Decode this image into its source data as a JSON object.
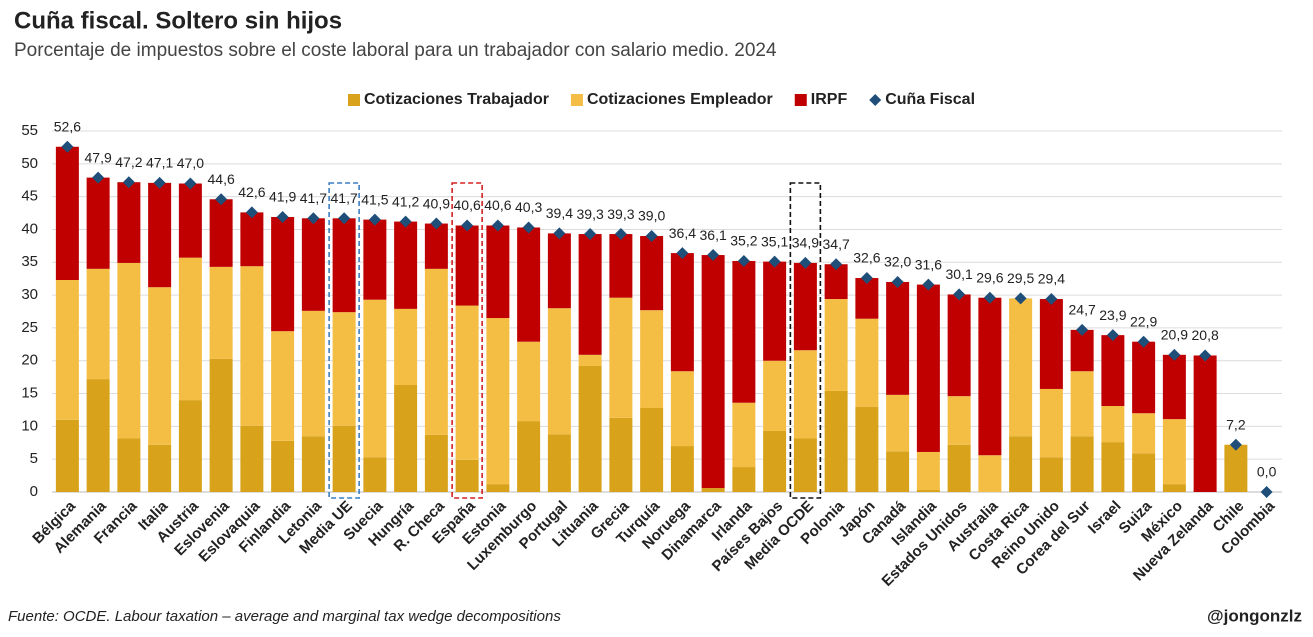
{
  "chart_data": {
    "type": "bar",
    "stacked": true,
    "title": "Cuña fiscal. Soltero sin hijos",
    "subtitle": "Porcentaje de impuestos sobre el coste laboral para un trabajador con salario medio. 2024",
    "source": "Fuente: OCDE. Labour taxation – average and marginal tax wedge decompositions",
    "credit": "@jongonzlz",
    "categories": [
      "Bélgica",
      "Alemania",
      "Francia",
      "Italia",
      "Austria",
      "Eslovenia",
      "Eslovaquia",
      "Finlandia",
      "Letonia",
      "Media UE",
      "Suecia",
      "Hungría",
      "R. Checa",
      "España",
      "Estonia",
      "Luxemburgo",
      "Portugal",
      "Lituania",
      "Grecia",
      "Turquía",
      "Noruega",
      "Dinamarca",
      "Irlanda",
      "Países Bajos",
      "Media OCDE",
      "Polonia",
      "Japón",
      "Canadá",
      "Islandia",
      "Estados Unidos",
      "Australia",
      "Costa Rica",
      "Reino Unido",
      "Corea del Sur",
      "Israel",
      "Suiza",
      "México",
      "Nueva Zelanda",
      "Chile",
      "Colombia"
    ],
    "series": [
      {
        "name": "Cotizaciones Trabajador",
        "type": "bar",
        "color": "#D9A21B",
        "values": [
          11.0,
          17.2,
          8.2,
          7.2,
          14.0,
          20.3,
          10.1,
          7.8,
          8.5,
          10.1,
          5.3,
          16.3,
          8.7,
          4.9,
          1.2,
          10.8,
          8.8,
          19.2,
          11.3,
          12.8,
          7.0,
          0.6,
          3.8,
          9.3,
          8.2,
          15.4,
          13.0,
          6.2,
          0.3,
          7.2,
          0,
          8.5,
          5.3,
          8.5,
          7.6,
          5.9,
          1.2,
          0,
          7.2,
          0
        ]
      },
      {
        "name": "Cotizaciones Empleador",
        "type": "bar",
        "color": "#F4BE45",
        "values": [
          21.3,
          16.8,
          26.7,
          24.0,
          21.7,
          14.0,
          24.3,
          16.7,
          19.1,
          17.3,
          24.0,
          11.6,
          25.3,
          23.5,
          25.3,
          12.1,
          19.2,
          1.7,
          18.3,
          14.9,
          11.4,
          0,
          9.8,
          10.7,
          13.4,
          14.0,
          13.4,
          8.6,
          5.8,
          7.4,
          5.6,
          21.0,
          10.4,
          9.9,
          5.5,
          6.1,
          9.9,
          0,
          0,
          0
        ]
      },
      {
        "name": "IRPF",
        "type": "bar",
        "color": "#C00000",
        "values": [
          20.3,
          13.9,
          12.3,
          15.9,
          11.3,
          10.3,
          8.2,
          17.4,
          14.1,
          14.3,
          12.2,
          13.3,
          6.9,
          12.2,
          14.1,
          17.4,
          11.4,
          18.4,
          9.7,
          11.3,
          18.0,
          35.5,
          21.6,
          15.1,
          13.3,
          5.3,
          6.2,
          17.2,
          25.5,
          15.5,
          24.0,
          0,
          13.7,
          6.3,
          10.8,
          10.9,
          9.8,
          20.8,
          0,
          0
        ]
      },
      {
        "name": "Cuña Fiscal",
        "type": "scatter",
        "marker": "diamond",
        "color": "#1F4E79",
        "values": [
          52.6,
          47.9,
          47.2,
          47.1,
          47.0,
          44.6,
          42.6,
          41.9,
          41.7,
          41.7,
          41.5,
          41.2,
          40.9,
          40.6,
          40.6,
          40.3,
          39.4,
          39.3,
          39.3,
          39.0,
          36.4,
          36.1,
          35.2,
          35.1,
          34.9,
          34.7,
          32.6,
          32.0,
          31.6,
          30.1,
          29.6,
          29.5,
          29.4,
          24.7,
          23.9,
          22.9,
          20.9,
          20.8,
          7.2,
          0.0
        ],
        "value_labels": [
          "52,6",
          "47,9",
          "47,2",
          "47,1",
          "47,0",
          "44,6",
          "42,6",
          "41,9",
          "41,7",
          "41,7",
          "41,5",
          "41,2",
          "40,9",
          "40,6",
          "40,6",
          "40,3",
          "39,4",
          "39,3",
          "39,3",
          "39,0",
          "36,4",
          "36,1",
          "35,2",
          "35,1",
          "34,9",
          "34,7",
          "32,6",
          "32,0",
          "31,6",
          "30,1",
          "29,6",
          "29,5",
          "29,4",
          "24,7",
          "23,9",
          "22,9",
          "20,9",
          "20,8",
          "7,2",
          "0,0"
        ]
      }
    ],
    "ylim": [
      0,
      55
    ],
    "yticks": [
      0,
      5,
      10,
      15,
      20,
      25,
      30,
      35,
      40,
      45,
      50,
      55
    ],
    "grid": true,
    "legend": "top"
  }
}
